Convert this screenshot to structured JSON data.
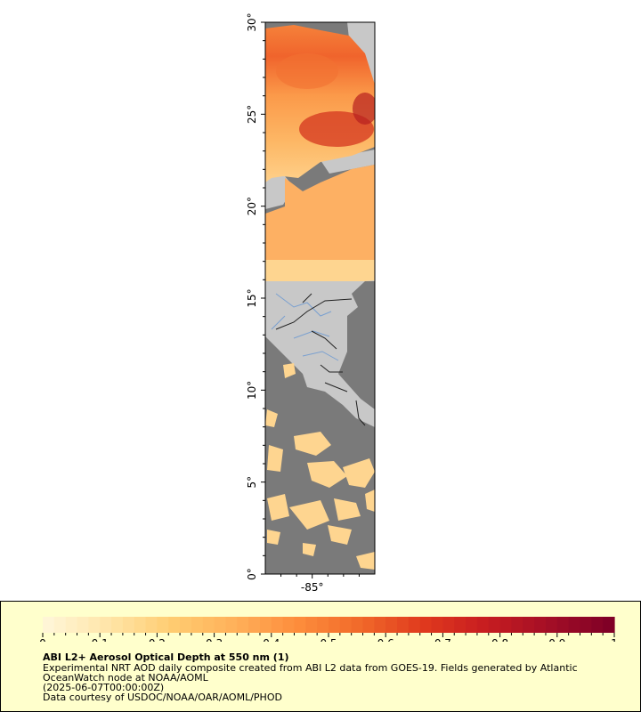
{
  "map": {
    "lat_labels": [
      "30°",
      "25°",
      "20°",
      "15°",
      "10°",
      "5°",
      "0°"
    ],
    "lat_values": [
      30,
      25,
      20,
      15,
      10,
      5,
      0
    ],
    "lon_labels": [
      "-85°"
    ],
    "lon_values": [
      -85
    ],
    "lat_range": [
      0,
      30
    ],
    "lon_range": [
      -88,
      -81
    ],
    "colors": {
      "no_data": "#7a7a7a",
      "land": "#c8c8c8",
      "rivers": "#7aa0d0",
      "borders": "#222222",
      "frame": "#000000"
    }
  },
  "legend": {
    "background": "#ffffcc",
    "title": "ABI L2+ Aerosol Optical Depth at 550 nm (1)",
    "line1": "Experimental NRT AOD daily composite created from ABI L2 data from GOES-19. Fields generated by Atlantic",
    "line2": "OceanWatch node at NOAA/AOML",
    "line3": "(2025-06-07T00:00:00Z)",
    "line4": "Data courtesy of USDOC/NOAA/OAR/AOML/PHOD",
    "scale_min": 0,
    "scale_max": 1,
    "tick_labels": [
      "0",
      "0.1",
      "0.2",
      "0.3",
      "0.4",
      "0.5",
      "0.6",
      "0.7",
      "0.8",
      "0.9",
      "1"
    ],
    "tick_values": [
      0,
      0.1,
      0.2,
      0.3,
      0.4,
      0.5,
      0.6,
      0.7,
      0.8,
      0.9,
      1.0
    ],
    "color_stops": [
      "#fff5d6",
      "#ffe4a6",
      "#ffcc70",
      "#ffb05a",
      "#fd8d3c",
      "#f16a2a",
      "#e03a1e",
      "#c81d20",
      "#a50f26",
      "#800026"
    ]
  }
}
